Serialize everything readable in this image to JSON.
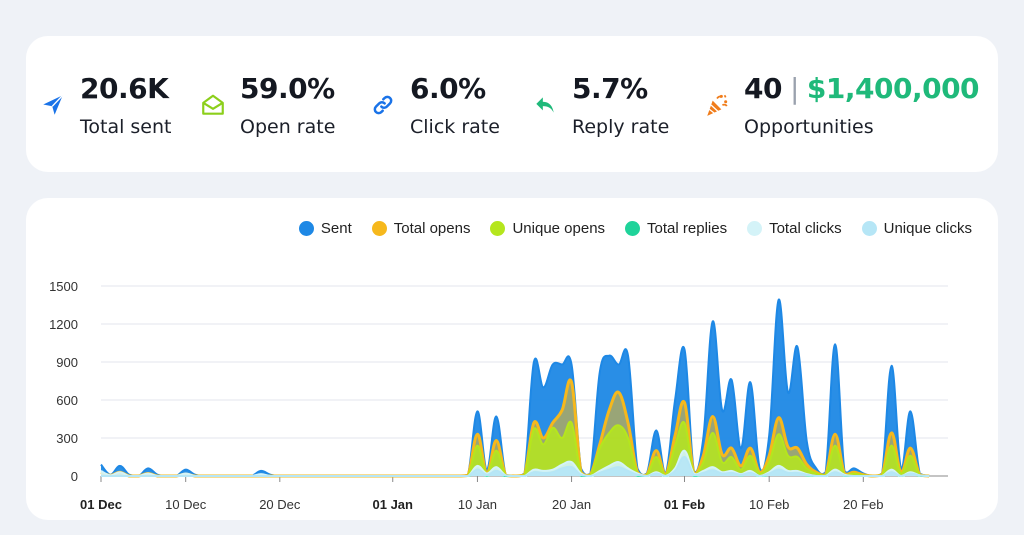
{
  "stats": [
    {
      "value": "20.6K",
      "label": "Total sent",
      "icon": "paper-plane-icon",
      "color": "#1a73e8"
    },
    {
      "value": "59.0%",
      "label": "Open rate",
      "icon": "open-envelope-icon",
      "color": "#8ccf1b"
    },
    {
      "value": "6.0%",
      "label": "Click rate",
      "icon": "link-icon",
      "color": "#1a73e8"
    },
    {
      "value": "5.7%",
      "label": "Reply rate",
      "icon": "reply-icon",
      "color": "#1fb97a"
    },
    {
      "value_count": "40",
      "value_separator": "|",
      "value_money": "$1,400,000",
      "label": "Opportunities",
      "icon": "party-popper-icon",
      "color": "#f07c1a"
    }
  ],
  "chart_data": {
    "type": "area",
    "legend": [
      {
        "name": "Sent",
        "color": "#1e88e5"
      },
      {
        "name": "Total opens",
        "color": "#f6b81c"
      },
      {
        "name": "Unique opens",
        "color": "#b5e61d"
      },
      {
        "name": "Total replies",
        "color": "#1fd39a"
      },
      {
        "name": "Total clicks",
        "color": "#d4f3f8"
      },
      {
        "name": "Unique clicks",
        "color": "#b6e6f6"
      }
    ],
    "y_ticks": [
      "1500",
      "1200",
      "900",
      "600",
      "300",
      "0"
    ],
    "ylim": [
      0,
      1500
    ],
    "x_ticks": [
      {
        "label": "01 Dec",
        "day": 0,
        "bold": true
      },
      {
        "label": "10 Dec",
        "day": 9,
        "bold": false
      },
      {
        "label": "20 Dec",
        "day": 19,
        "bold": false
      },
      {
        "label": "01 Jan",
        "day": 31,
        "bold": true
      },
      {
        "label": "10 Jan",
        "day": 40,
        "bold": false
      },
      {
        "label": "20 Jan",
        "day": 50,
        "bold": false
      },
      {
        "label": "01 Feb",
        "day": 62,
        "bold": true
      },
      {
        "label": "10 Feb",
        "day": 71,
        "bold": false
      },
      {
        "label": "20 Feb",
        "day": 81,
        "bold": false
      }
    ],
    "x_range_days": [
      0,
      90
    ],
    "series": [
      {
        "name": "Sent",
        "color": "#1e88e5",
        "points": [
          [
            0,
            90
          ],
          [
            1,
            10
          ],
          [
            2,
            80
          ],
          [
            3,
            10
          ],
          [
            5,
            60
          ],
          [
            6,
            10
          ],
          [
            9,
            50
          ],
          [
            10,
            10
          ],
          [
            17,
            40
          ],
          [
            18,
            10
          ],
          [
            39,
            10
          ],
          [
            40,
            510
          ],
          [
            41,
            50
          ],
          [
            42,
            470
          ],
          [
            43,
            10
          ],
          [
            45,
            20
          ],
          [
            46,
            900
          ],
          [
            47,
            700
          ],
          [
            48,
            880
          ],
          [
            49,
            880
          ],
          [
            50,
            880
          ],
          [
            51,
            60
          ],
          [
            52,
            20
          ],
          [
            53,
            820
          ],
          [
            54,
            950
          ],
          [
            55,
            880
          ],
          [
            56,
            950
          ],
          [
            57,
            60
          ],
          [
            58,
            20
          ],
          [
            59,
            360
          ],
          [
            60,
            20
          ],
          [
            61,
            600
          ],
          [
            62,
            1000
          ],
          [
            63,
            40
          ],
          [
            64,
            300
          ],
          [
            65,
            1220
          ],
          [
            66,
            520
          ],
          [
            67,
            760
          ],
          [
            68,
            220
          ],
          [
            69,
            740
          ],
          [
            70,
            60
          ],
          [
            71,
            320
          ],
          [
            72,
            1390
          ],
          [
            73,
            660
          ],
          [
            74,
            1020
          ],
          [
            75,
            270
          ],
          [
            76,
            60
          ],
          [
            77,
            30
          ],
          [
            78,
            1040
          ],
          [
            79,
            40
          ],
          [
            80,
            60
          ],
          [
            81,
            20
          ],
          [
            83,
            20
          ],
          [
            84,
            870
          ],
          [
            85,
            60
          ],
          [
            86,
            510
          ],
          [
            87,
            20
          ]
        ]
      },
      {
        "name": "Total opens",
        "color": "#f6b81c",
        "points": [
          [
            0,
            30
          ],
          [
            1,
            5
          ],
          [
            2,
            30
          ],
          [
            5,
            20
          ],
          [
            9,
            15
          ],
          [
            39,
            5
          ],
          [
            40,
            330
          ],
          [
            41,
            20
          ],
          [
            42,
            280
          ],
          [
            43,
            5
          ],
          [
            45,
            10
          ],
          [
            46,
            420
          ],
          [
            47,
            300
          ],
          [
            48,
            420
          ],
          [
            49,
            520
          ],
          [
            50,
            740
          ],
          [
            51,
            30
          ],
          [
            52,
            10
          ],
          [
            53,
            250
          ],
          [
            54,
            520
          ],
          [
            55,
            660
          ],
          [
            56,
            420
          ],
          [
            57,
            30
          ],
          [
            58,
            10
          ],
          [
            59,
            200
          ],
          [
            60,
            10
          ],
          [
            61,
            320
          ],
          [
            62,
            580
          ],
          [
            63,
            20
          ],
          [
            64,
            160
          ],
          [
            65,
            470
          ],
          [
            66,
            170
          ],
          [
            67,
            220
          ],
          [
            68,
            80
          ],
          [
            69,
            220
          ],
          [
            70,
            30
          ],
          [
            71,
            160
          ],
          [
            72,
            460
          ],
          [
            73,
            230
          ],
          [
            74,
            220
          ],
          [
            75,
            90
          ],
          [
            76,
            30
          ],
          [
            77,
            10
          ],
          [
            78,
            330
          ],
          [
            79,
            20
          ],
          [
            80,
            30
          ],
          [
            81,
            10
          ],
          [
            83,
            10
          ],
          [
            84,
            340
          ],
          [
            85,
            30
          ],
          [
            86,
            220
          ],
          [
            87,
            10
          ]
        ]
      },
      {
        "name": "Unique opens",
        "color": "#b5e61d",
        "points": [
          [
            40,
            240
          ],
          [
            41,
            15
          ],
          [
            42,
            200
          ],
          [
            43,
            5
          ],
          [
            45,
            5
          ],
          [
            46,
            370
          ],
          [
            47,
            250
          ],
          [
            48,
            380
          ],
          [
            49,
            300
          ],
          [
            50,
            420
          ],
          [
            51,
            20
          ],
          [
            52,
            5
          ],
          [
            53,
            220
          ],
          [
            54,
            340
          ],
          [
            55,
            400
          ],
          [
            56,
            300
          ],
          [
            57,
            20
          ],
          [
            58,
            5
          ],
          [
            59,
            150
          ],
          [
            60,
            5
          ],
          [
            61,
            240
          ],
          [
            62,
            420
          ],
          [
            63,
            15
          ],
          [
            64,
            110
          ],
          [
            65,
            340
          ],
          [
            66,
            110
          ],
          [
            67,
            150
          ],
          [
            68,
            50
          ],
          [
            69,
            160
          ],
          [
            70,
            20
          ],
          [
            71,
            110
          ],
          [
            72,
            330
          ],
          [
            73,
            160
          ],
          [
            74,
            150
          ],
          [
            75,
            60
          ],
          [
            76,
            20
          ],
          [
            77,
            5
          ],
          [
            78,
            240
          ],
          [
            79,
            10
          ],
          [
            80,
            20
          ],
          [
            81,
            5
          ],
          [
            83,
            5
          ],
          [
            84,
            240
          ],
          [
            85,
            20
          ],
          [
            86,
            160
          ],
          [
            87,
            5
          ]
        ]
      },
      {
        "name": "Total replies",
        "color": "#1fd39a",
        "points": [
          [
            40,
            20
          ],
          [
            41,
            2
          ],
          [
            42,
            18
          ],
          [
            46,
            30
          ],
          [
            47,
            20
          ],
          [
            48,
            30
          ],
          [
            49,
            40
          ],
          [
            50,
            60
          ],
          [
            51,
            2
          ],
          [
            53,
            20
          ],
          [
            54,
            40
          ],
          [
            55,
            50
          ],
          [
            56,
            30
          ],
          [
            57,
            2
          ],
          [
            59,
            15
          ],
          [
            61,
            25
          ],
          [
            62,
            40
          ],
          [
            63,
            2
          ],
          [
            64,
            12
          ],
          [
            65,
            35
          ],
          [
            66,
            12
          ],
          [
            67,
            15
          ],
          [
            68,
            5
          ],
          [
            69,
            15
          ],
          [
            71,
            10
          ],
          [
            72,
            35
          ],
          [
            73,
            15
          ],
          [
            74,
            15
          ],
          [
            75,
            5
          ],
          [
            78,
            25
          ],
          [
            79,
            2
          ],
          [
            84,
            20
          ],
          [
            86,
            15
          ],
          [
            87,
            2
          ]
        ]
      },
      {
        "name": "Total clicks",
        "color": "#d4f3f8",
        "points": [
          [
            0,
            40
          ],
          [
            1,
            5
          ],
          [
            2,
            30
          ],
          [
            5,
            20
          ],
          [
            9,
            20
          ],
          [
            17,
            15
          ],
          [
            40,
            80
          ],
          [
            41,
            20
          ],
          [
            42,
            70
          ],
          [
            43,
            5
          ],
          [
            46,
            50
          ],
          [
            47,
            40
          ],
          [
            48,
            50
          ],
          [
            49,
            90
          ],
          [
            50,
            110
          ],
          [
            51,
            20
          ],
          [
            53,
            40
          ],
          [
            54,
            80
          ],
          [
            55,
            110
          ],
          [
            56,
            60
          ],
          [
            57,
            20
          ],
          [
            59,
            30
          ],
          [
            61,
            60
          ],
          [
            62,
            200
          ],
          [
            63,
            20
          ],
          [
            64,
            40
          ],
          [
            65,
            70
          ],
          [
            66,
            30
          ],
          [
            67,
            40
          ],
          [
            68,
            15
          ],
          [
            69,
            40
          ],
          [
            71,
            30
          ],
          [
            72,
            80
          ],
          [
            73,
            40
          ],
          [
            74,
            40
          ],
          [
            75,
            15
          ],
          [
            78,
            50
          ],
          [
            79,
            10
          ],
          [
            84,
            50
          ],
          [
            86,
            30
          ],
          [
            87,
            5
          ]
        ]
      },
      {
        "name": "Unique clicks",
        "color": "#b6e6f6",
        "points": [
          [
            40,
            50
          ],
          [
            41,
            10
          ],
          [
            42,
            40
          ],
          [
            43,
            5
          ],
          [
            46,
            30
          ],
          [
            47,
            25
          ],
          [
            48,
            30
          ],
          [
            49,
            60
          ],
          [
            50,
            70
          ],
          [
            51,
            10
          ],
          [
            53,
            25
          ],
          [
            54,
            50
          ],
          [
            55,
            70
          ],
          [
            56,
            40
          ],
          [
            57,
            10
          ],
          [
            59,
            20
          ],
          [
            61,
            40
          ],
          [
            62,
            150
          ],
          [
            63,
            10
          ],
          [
            64,
            25
          ],
          [
            65,
            45
          ],
          [
            66,
            20
          ],
          [
            67,
            25
          ],
          [
            68,
            10
          ],
          [
            69,
            25
          ],
          [
            71,
            20
          ],
          [
            72,
            50
          ],
          [
            73,
            25
          ],
          [
            74,
            25
          ],
          [
            75,
            10
          ],
          [
            78,
            30
          ],
          [
            79,
            5
          ],
          [
            84,
            30
          ],
          [
            86,
            20
          ],
          [
            87,
            5
          ]
        ]
      }
    ]
  }
}
